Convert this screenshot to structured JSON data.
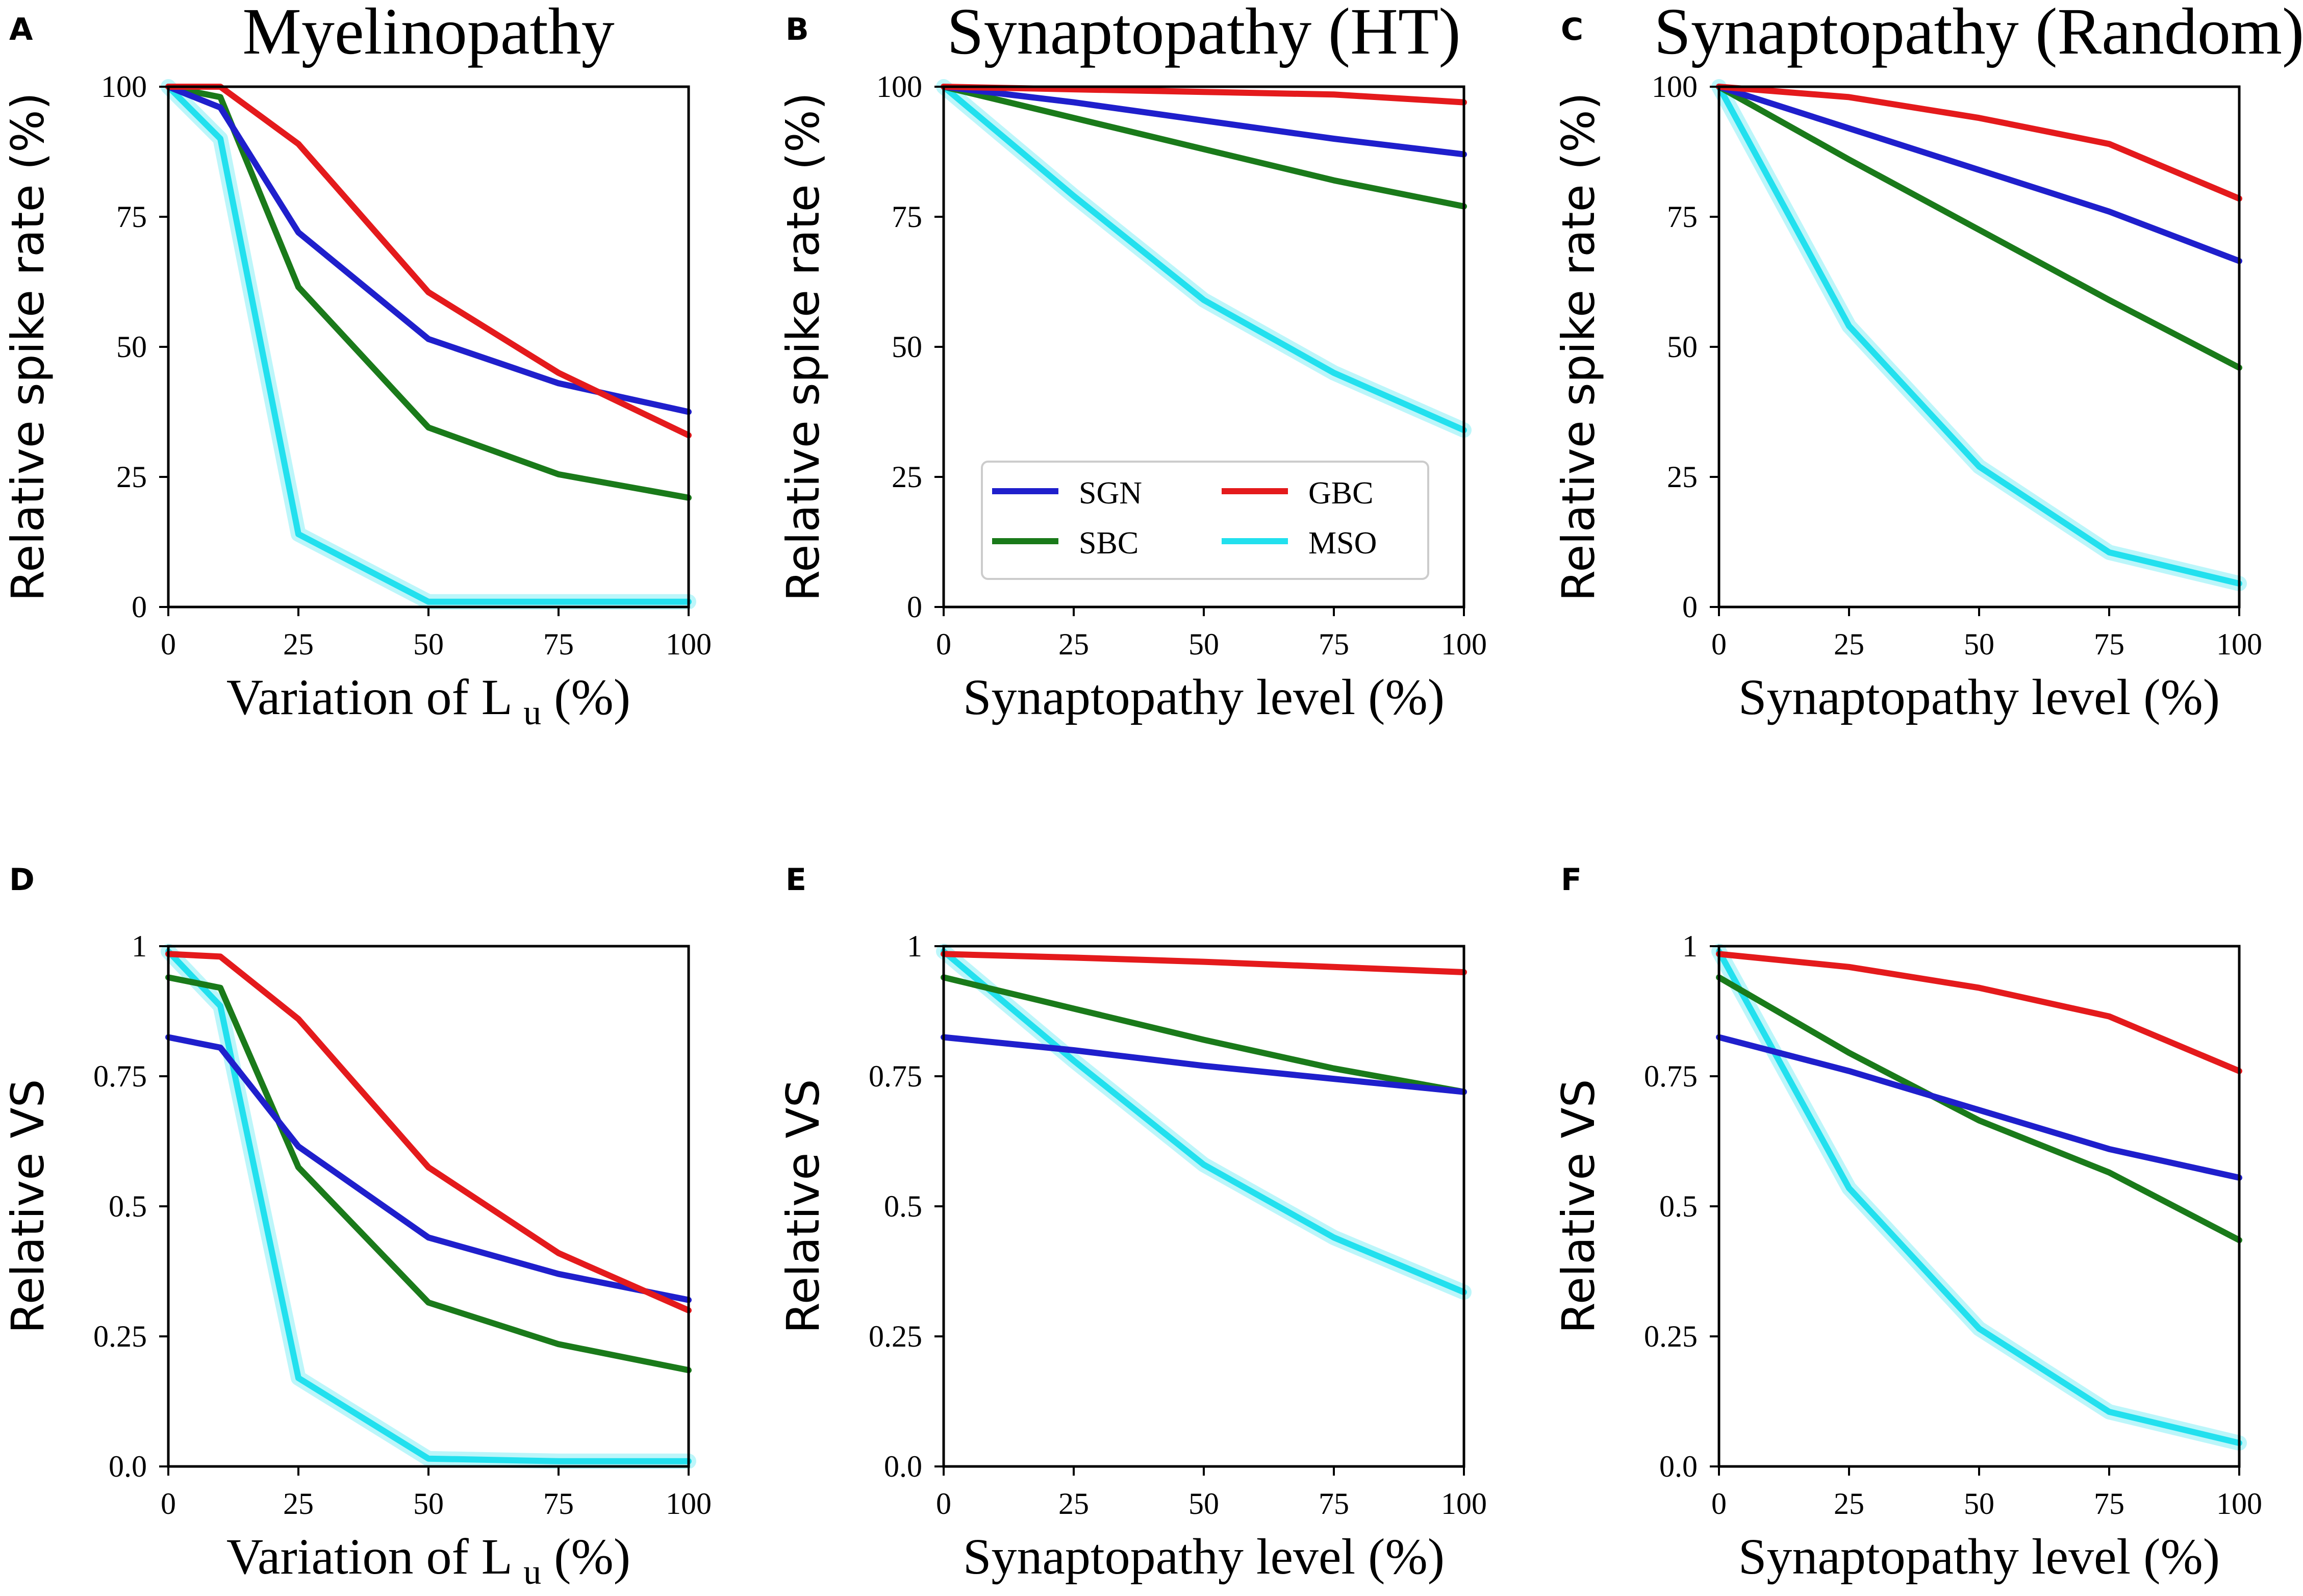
{
  "colors": {
    "SGN": "#1f1fcc",
    "GBC": "#e41a1c",
    "SBC": "#1a7a1a",
    "MSO": "#22e0ee"
  },
  "legend": {
    "entries": [
      "SGN",
      "GBC",
      "SBC",
      "MSO"
    ],
    "location": "lower-left"
  },
  "chart_data": [
    {
      "panel": "A",
      "type": "line",
      "title": "Myelinopathy",
      "xlabel": "Variation of L",
      "xlabel_sub": "u",
      "xlabel_unit": "(%)",
      "ylabel": "Relative spike rate (%)",
      "xlim": [
        0,
        100
      ],
      "ylim": [
        0,
        100
      ],
      "xticks": [
        0,
        25,
        50,
        75,
        100
      ],
      "xtick_labels": [
        "0",
        "25",
        "50",
        "75",
        "100"
      ],
      "yticks": [
        0,
        25,
        50,
        75,
        100
      ],
      "ytick_labels": [
        "0",
        "25",
        "50",
        "75",
        "100"
      ],
      "x": [
        0,
        10,
        25,
        50,
        75,
        100
      ],
      "series": [
        {
          "name": "SGN",
          "values": [
            100,
            96,
            72,
            51.5,
            43,
            37.5
          ]
        },
        {
          "name": "GBC",
          "values": [
            100,
            100,
            89,
            60.5,
            45,
            33
          ]
        },
        {
          "name": "SBC",
          "values": [
            100,
            98,
            61.5,
            34.5,
            25.5,
            21
          ]
        },
        {
          "name": "MSO",
          "values": [
            100,
            90,
            14,
            1,
            1,
            1
          ]
        }
      ]
    },
    {
      "panel": "B",
      "type": "line",
      "title": "Synaptopathy (HT)",
      "xlabel": "Synaptopathy level (%)",
      "xlabel_sub": "",
      "xlabel_unit": "",
      "ylabel": "Relative spike rate (%)",
      "xlim": [
        0,
        100
      ],
      "ylim": [
        0,
        100
      ],
      "xticks": [
        0,
        25,
        50,
        75,
        100
      ],
      "xtick_labels": [
        "0",
        "25",
        "50",
        "75",
        "100"
      ],
      "yticks": [
        0,
        25,
        50,
        75,
        100
      ],
      "ytick_labels": [
        "0",
        "25",
        "50",
        "75",
        "100"
      ],
      "x": [
        0,
        25,
        50,
        75,
        100
      ],
      "series": [
        {
          "name": "SGN",
          "values": [
            100,
            97,
            93.5,
            90,
            87
          ]
        },
        {
          "name": "GBC",
          "values": [
            100,
            99.5,
            99,
            98.5,
            97
          ]
        },
        {
          "name": "SBC",
          "values": [
            100,
            94,
            88,
            82,
            77
          ]
        },
        {
          "name": "MSO",
          "values": [
            100,
            79,
            59,
            45,
            34
          ]
        }
      ]
    },
    {
      "panel": "C",
      "type": "line",
      "title": "Synaptopathy (Random)",
      "xlabel": "Synaptopathy level (%)",
      "xlabel_sub": "",
      "xlabel_unit": "",
      "ylabel": "Relative spike rate (%)",
      "xlim": [
        0,
        100
      ],
      "ylim": [
        0,
        100
      ],
      "xticks": [
        0,
        25,
        50,
        75,
        100
      ],
      "xtick_labels": [
        "0",
        "25",
        "50",
        "75",
        "100"
      ],
      "yticks": [
        0,
        25,
        50,
        75,
        100
      ],
      "ytick_labels": [
        "0",
        "25",
        "50",
        "75",
        "100"
      ],
      "x": [
        0,
        25,
        50,
        75,
        100
      ],
      "series": [
        {
          "name": "SGN",
          "values": [
            100,
            92,
            84,
            76,
            66.5
          ]
        },
        {
          "name": "GBC",
          "values": [
            100,
            98,
            94,
            89,
            78.5
          ]
        },
        {
          "name": "SBC",
          "values": [
            100,
            86,
            72.5,
            59,
            46
          ]
        },
        {
          "name": "MSO",
          "values": [
            100,
            54,
            27,
            10.5,
            4.5
          ]
        }
      ]
    },
    {
      "panel": "D",
      "type": "line",
      "title": "",
      "xlabel": "Variation of L",
      "xlabel_sub": "u",
      "xlabel_unit": "(%)",
      "ylabel": "Relative VS",
      "xlim": [
        0,
        100
      ],
      "ylim": [
        0,
        1
      ],
      "xticks": [
        0,
        25,
        50,
        75,
        100
      ],
      "xtick_labels": [
        "0",
        "25",
        "50",
        "75",
        "100"
      ],
      "yticks": [
        0,
        0.25,
        0.5,
        0.75,
        1
      ],
      "ytick_labels": [
        "0.0",
        "0.25",
        "0.5",
        "0.75",
        "1"
      ],
      "x": [
        0,
        10,
        25,
        50,
        75,
        100
      ],
      "series": [
        {
          "name": "SGN",
          "values": [
            0.825,
            0.805,
            0.615,
            0.44,
            0.37,
            0.32
          ]
        },
        {
          "name": "GBC",
          "values": [
            0.985,
            0.98,
            0.86,
            0.575,
            0.41,
            0.3
          ]
        },
        {
          "name": "SBC",
          "values": [
            0.94,
            0.92,
            0.575,
            0.315,
            0.235,
            0.185
          ]
        },
        {
          "name": "MSO",
          "values": [
            0.99,
            0.885,
            0.17,
            0.015,
            0.01,
            0.01
          ]
        }
      ]
    },
    {
      "panel": "E",
      "type": "line",
      "title": "",
      "xlabel": "Synaptopathy level (%)",
      "xlabel_sub": "",
      "xlabel_unit": "",
      "ylabel": "Relative VS",
      "xlim": [
        0,
        100
      ],
      "ylim": [
        0,
        1
      ],
      "xticks": [
        0,
        25,
        50,
        75,
        100
      ],
      "xtick_labels": [
        "0",
        "25",
        "50",
        "75",
        "100"
      ],
      "yticks": [
        0,
        0.25,
        0.5,
        0.75,
        1
      ],
      "ytick_labels": [
        "0.0",
        "0.25",
        "0.5",
        "0.75",
        "1"
      ],
      "x": [
        0,
        25,
        50,
        75,
        100
      ],
      "series": [
        {
          "name": "SGN",
          "values": [
            0.825,
            0.8,
            0.77,
            0.745,
            0.72
          ]
        },
        {
          "name": "GBC",
          "values": [
            0.985,
            0.978,
            0.97,
            0.96,
            0.95
          ]
        },
        {
          "name": "SBC",
          "values": [
            0.94,
            0.88,
            0.82,
            0.765,
            0.72
          ]
        },
        {
          "name": "MSO",
          "values": [
            0.99,
            0.78,
            0.58,
            0.44,
            0.335
          ]
        }
      ]
    },
    {
      "panel": "F",
      "type": "line",
      "title": "",
      "xlabel": "Synaptopathy level (%)",
      "xlabel_sub": "",
      "xlabel_unit": "",
      "ylabel": "Relative VS",
      "xlim": [
        0,
        100
      ],
      "ylim": [
        0,
        1
      ],
      "xticks": [
        0,
        25,
        50,
        75,
        100
      ],
      "xtick_labels": [
        "0",
        "25",
        "50",
        "75",
        "100"
      ],
      "yticks": [
        0,
        0.25,
        0.5,
        0.75,
        1
      ],
      "ytick_labels": [
        "0.0",
        "0.25",
        "0.5",
        "0.75",
        "1"
      ],
      "x": [
        0,
        25,
        50,
        75,
        100
      ],
      "series": [
        {
          "name": "SGN",
          "values": [
            0.825,
            0.76,
            0.685,
            0.61,
            0.555
          ]
        },
        {
          "name": "GBC",
          "values": [
            0.985,
            0.96,
            0.92,
            0.865,
            0.76
          ]
        },
        {
          "name": "SBC",
          "values": [
            0.94,
            0.795,
            0.665,
            0.565,
            0.435
          ]
        },
        {
          "name": "MSO",
          "values": [
            0.99,
            0.535,
            0.265,
            0.105,
            0.045
          ]
        }
      ]
    }
  ]
}
